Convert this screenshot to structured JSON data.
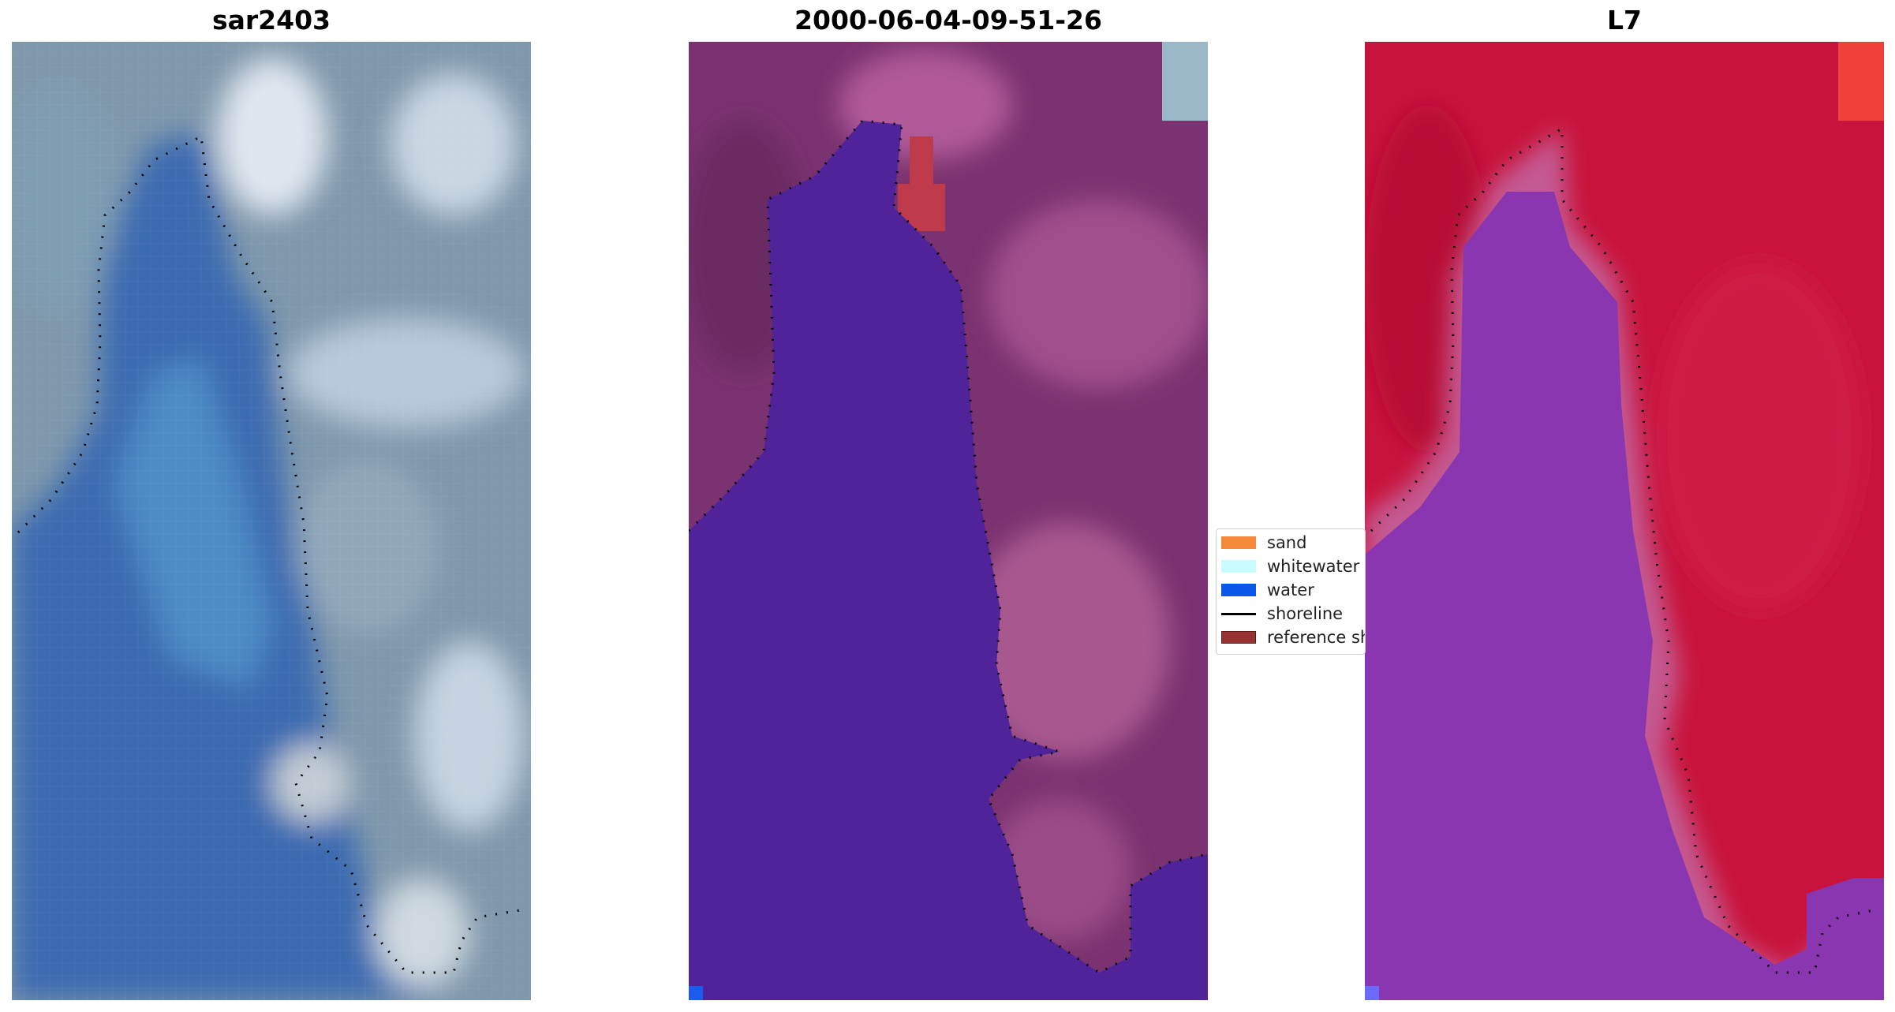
{
  "panels": [
    {
      "title": "sar2403"
    },
    {
      "title": "2000-06-04-09-51-26"
    },
    {
      "title": "L7"
    }
  ],
  "legend": {
    "items": [
      {
        "label": "sand",
        "color": "#f58a3a",
        "kind": "patch"
      },
      {
        "label": "whitewater",
        "color": "#c8fcff",
        "kind": "patch"
      },
      {
        "label": "water",
        "color": "#0a56e8",
        "kind": "patch"
      },
      {
        "label": "shoreline",
        "color": "#000000",
        "kind": "line"
      },
      {
        "label": "reference sh",
        "color": "#963232",
        "kind": "patch"
      }
    ]
  },
  "colors": {
    "water_class": "#51239a",
    "land_overlay": "#8a3f78",
    "rgb_water": "#3a6fb0",
    "rgb_land": "#8fa3b8",
    "ndwi_land": "#c8143c",
    "ndwi_water": "#8a36b0"
  }
}
